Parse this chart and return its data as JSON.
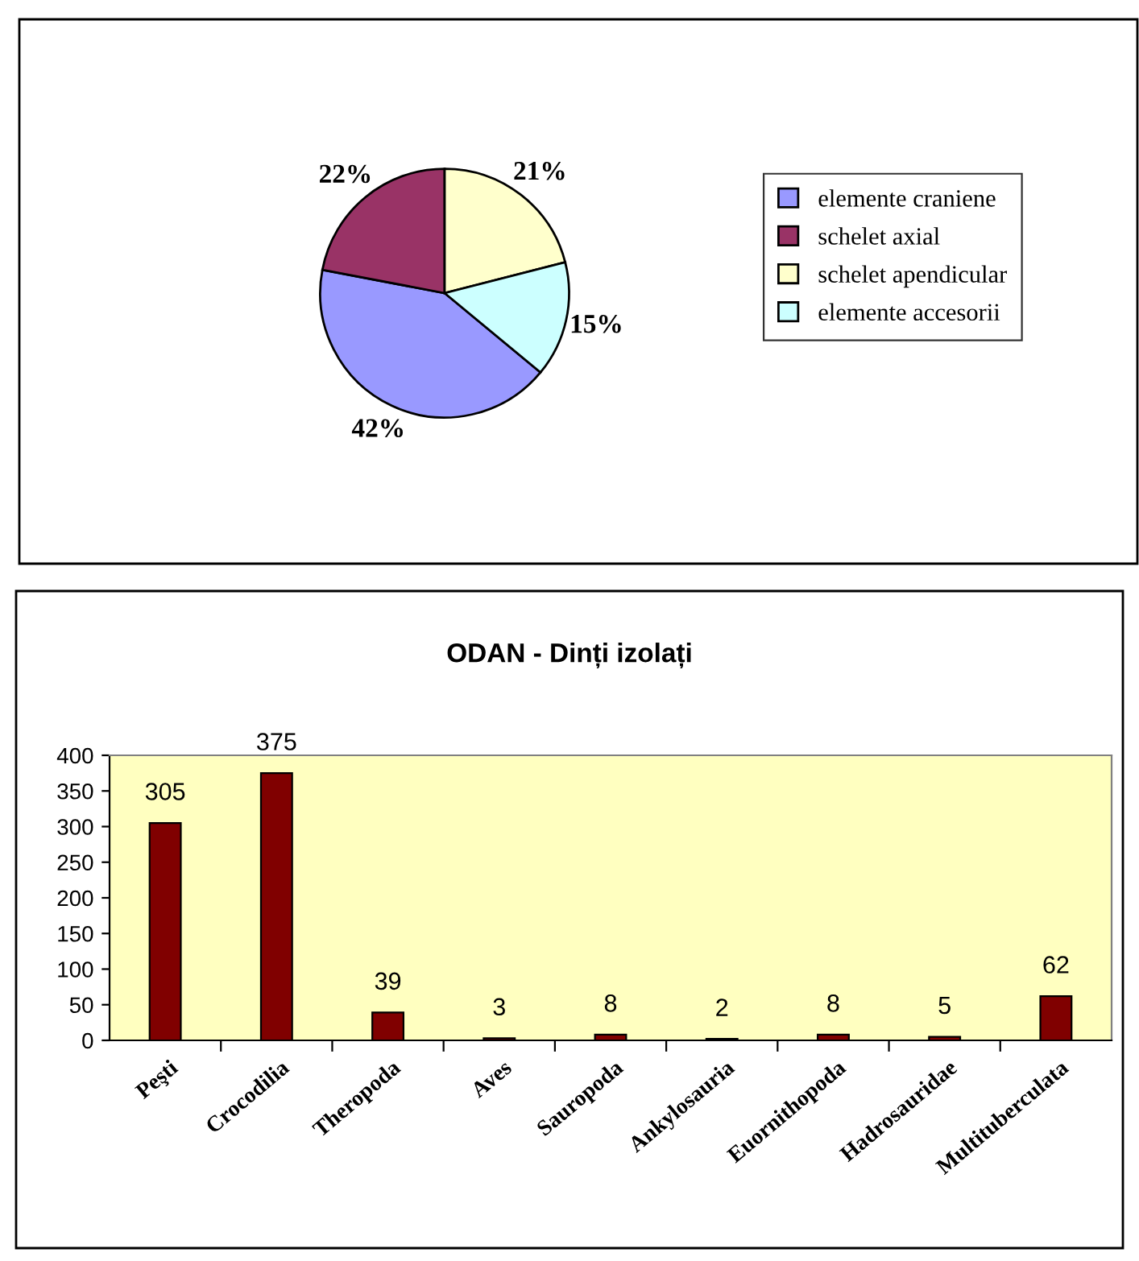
{
  "chart_data": [
    {
      "type": "pie",
      "categories": [
        "elemente craniene",
        "schelet axial",
        "schelet apendicular",
        "elemente accesorii"
      ],
      "values": [
        42,
        22,
        21,
        15
      ],
      "colors": [
        "#9999ff",
        "#993366",
        "#ffffcc",
        "#ccffff"
      ],
      "value_labels": [
        "42%",
        "22%",
        "21%",
        "15%"
      ],
      "legend": "right"
    },
    {
      "type": "bar",
      "title": "ODAN - Dinți izolați",
      "categories": [
        "Peşti",
        "Crocodilia",
        "Theropoda",
        "Aves",
        "Sauropoda",
        "Ankylosauria",
        "Euornithopoda",
        "Hadrosauridae",
        "Multituberculata"
      ],
      "values": [
        305,
        375,
        39,
        3,
        8,
        2,
        8,
        5,
        62
      ],
      "color": "#800000",
      "ylim": [
        0,
        400
      ],
      "yticks": [
        0,
        50,
        100,
        150,
        200,
        250,
        300,
        350,
        400
      ],
      "data_labels": true,
      "grid": false,
      "legend": false
    }
  ]
}
